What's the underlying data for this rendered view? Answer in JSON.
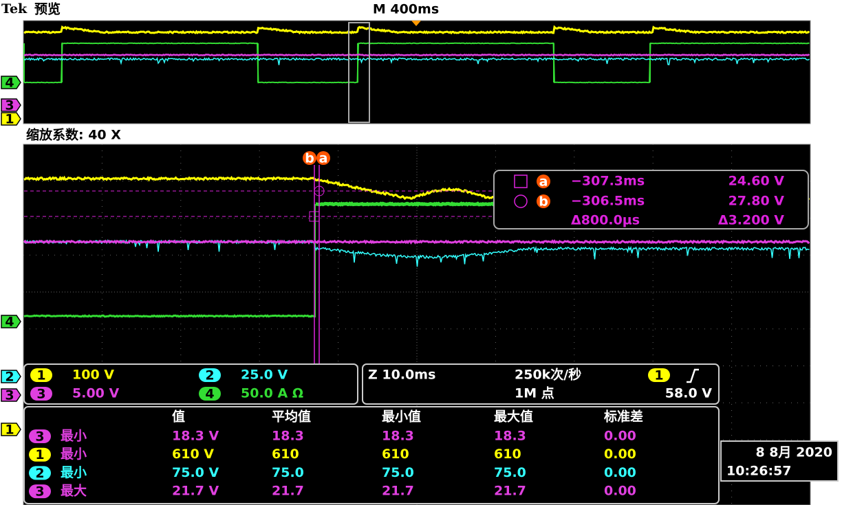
{
  "header": {
    "brand": "Tek",
    "mode": "预览",
    "timebase": "M 400ms"
  },
  "zoom_label": "缩放系数: 40 X",
  "channels": [
    {
      "id": "1",
      "scale": "100 V",
      "color": "#ffff00"
    },
    {
      "id": "2",
      "scale": "25.0 V",
      "color": "#33ffff"
    },
    {
      "id": "3",
      "scale": "5.00 V",
      "color": "#e040e0"
    },
    {
      "id": "4",
      "scale": "50.0 A Ω",
      "color": "#33dd33"
    }
  ],
  "overview_markers": [
    "4",
    "3",
    "1"
  ],
  "main_markers": [
    "4",
    "2",
    "3",
    "1"
  ],
  "cursors": {
    "labels": [
      "b",
      "a"
    ],
    "readout": [
      {
        "marker": "a",
        "time": "−307.3ms",
        "value": "24.60 V"
      },
      {
        "marker": "b",
        "time": "−306.5ms",
        "value": "27.80 V"
      }
    ],
    "delta_time": "Δ800.0µs",
    "delta_value": "Δ3.200 V"
  },
  "acquisition": {
    "zoom_timebase": "Z 10.0ms",
    "sample_rate": "250k次/秒",
    "record_length": "1M 点",
    "trigger_channel": "1",
    "trigger_level": "58.0 V"
  },
  "measurements": {
    "headers": [
      "值",
      "平均值",
      "最小值",
      "最大值",
      "标准差"
    ],
    "rows": [
      {
        "channel": "3",
        "stat": "最小",
        "cells": [
          "18.3 V",
          "18.3",
          "18.3",
          "18.3",
          "0.00"
        ]
      },
      {
        "channel": "1",
        "stat": "最小",
        "cells": [
          "610 V",
          "610",
          "610",
          "610",
          "0.00"
        ]
      },
      {
        "channel": "2",
        "stat": "最小",
        "cells": [
          "75.0 V",
          "75.0",
          "75.0",
          "75.0",
          "0.00"
        ]
      },
      {
        "channel": "3",
        "stat": "最大",
        "cells": [
          "21.7 V",
          "21.7",
          "21.7",
          "21.7",
          "0.00"
        ]
      }
    ]
  },
  "datetime": {
    "date": "8 8月 2020",
    "time": "10:26:57"
  }
}
